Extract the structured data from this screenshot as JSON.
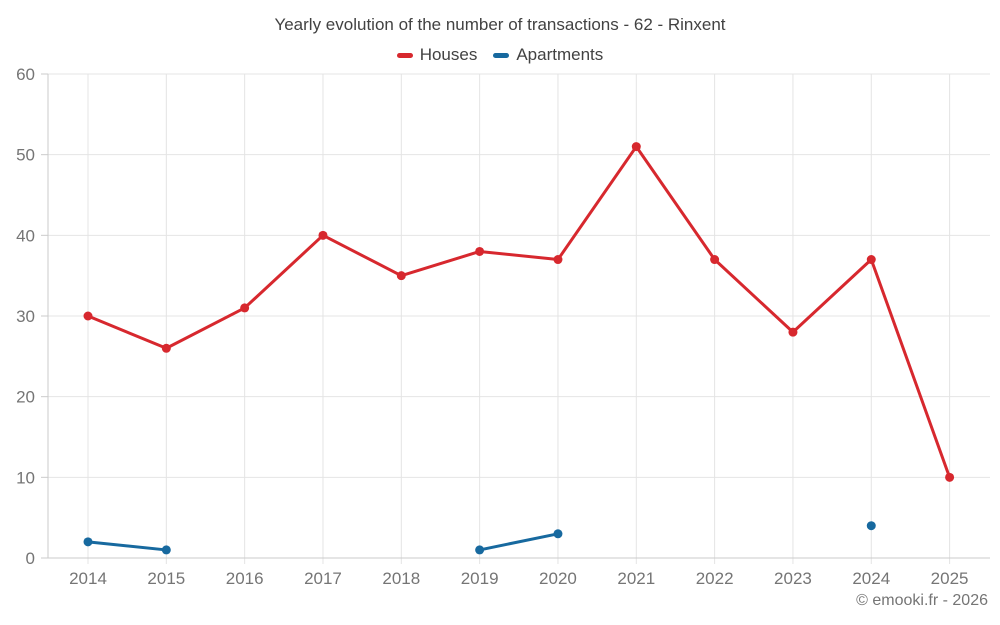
{
  "title": "Yearly evolution of the number of transactions - 62 - Rinxent",
  "footer": "© emooki.fr - 2026",
  "chart_data": {
    "type": "line",
    "categories": [
      "2014",
      "2015",
      "2016",
      "2017",
      "2018",
      "2019",
      "2020",
      "2021",
      "2022",
      "2023",
      "2024",
      "2025"
    ],
    "series": [
      {
        "name": "Houses",
        "color": "#d7282e",
        "values": [
          30,
          26,
          31,
          40,
          35,
          38,
          37,
          51,
          37,
          28,
          37,
          10
        ]
      },
      {
        "name": "Apartments",
        "color": "#17699f",
        "values": [
          2,
          1,
          null,
          null,
          null,
          1,
          3,
          null,
          null,
          null,
          4,
          null
        ]
      }
    ],
    "title": "Yearly evolution of the number of transactions - 62 - Rinxent",
    "xlabel": "",
    "ylabel": "",
    "ylim": [
      0,
      60
    ],
    "yticks": [
      0,
      10,
      20,
      30,
      40,
      50,
      60
    ],
    "grid": true,
    "legend_position": "top",
    "colors": {
      "grid": "#e4e4e4",
      "axis": "#cbcbcb",
      "tick_text": "#757575",
      "title_text": "#424242"
    }
  }
}
